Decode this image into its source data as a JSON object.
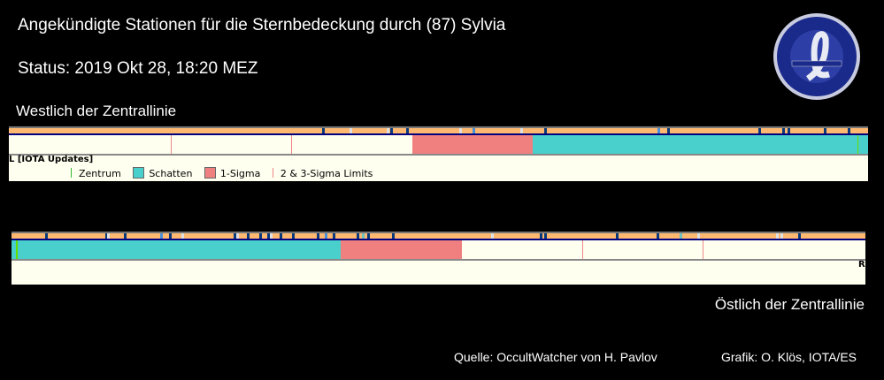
{
  "header": {
    "title": "Angekündigte Stationen für die Sternbedeckung durch (87) Sylvia",
    "status": "Status: 2019 Okt 28, 18:20 MEZ"
  },
  "logo": {
    "text": "INTERNATIONAL OCCULTATION TIMING ASSOCIATION - EUROPEAN SECTION"
  },
  "west": {
    "label": "Westlich der Zentrallinie",
    "source_tag": "L [IOTA Updates]"
  },
  "legend": {
    "center": "Zentrum",
    "shadow": "Schatten",
    "sigma1": "1-Sigma",
    "sigma23": "2 & 3-Sigma Limits"
  },
  "east": {
    "label": "Östlich der Zentrallinie",
    "edge_tag": "R"
  },
  "footer": {
    "source": "Quelle: OccultWatcher von H. Pavlov",
    "credit": "Grafik: O. Klös, IOTA/ES"
  },
  "colors": {
    "shadow": "#4ad0cc",
    "sigma1": "#f08080",
    "strip": "#ffb870",
    "center": "#66dd00",
    "background": "#fffff0"
  }
}
